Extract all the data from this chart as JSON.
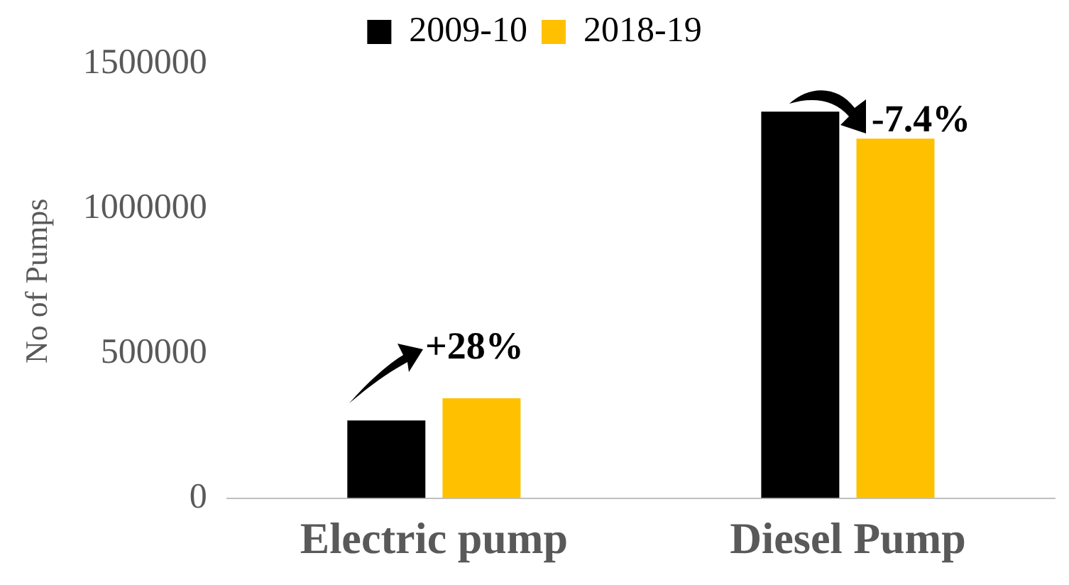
{
  "chart_data": {
    "type": "bar",
    "ylabel": "No of Pumps",
    "categories": [
      "Electric pump",
      "Diesel Pump"
    ],
    "series": [
      {
        "name": "2009-10",
        "color": "#000000",
        "values": [
          268000,
          1335000
        ]
      },
      {
        "name": "2018-19",
        "color": "#ffc000",
        "values": [
          345000,
          1242000
        ]
      }
    ],
    "ylim": [
      0,
      1500000
    ],
    "yticks": [
      0,
      500000,
      1000000,
      1500000
    ],
    "grid": false,
    "legend": "top",
    "annotations": [
      "+28%",
      "-7.4%"
    ]
  }
}
